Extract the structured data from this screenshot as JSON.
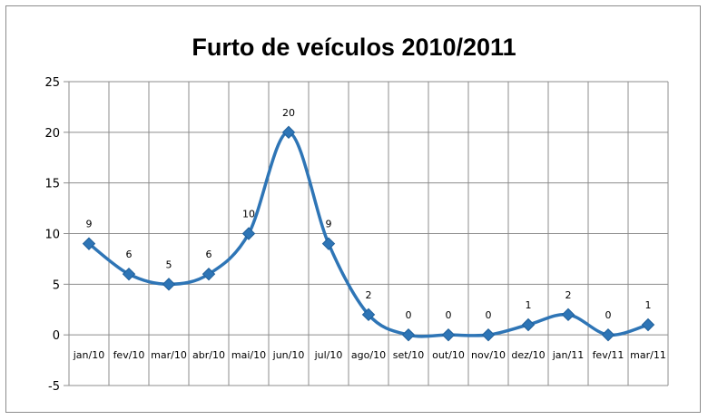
{
  "chart_data": {
    "type": "line",
    "title": "Furto de veículos 2010/2011",
    "categories": [
      "jan/10",
      "fev/10",
      "mar/10",
      "abr/10",
      "mai/10",
      "jun/10",
      "jul/10",
      "ago/10",
      "set/10",
      "out/10",
      "nov/10",
      "dez/10",
      "jan/11",
      "fev/11",
      "mar/11"
    ],
    "values": [
      9,
      6,
      5,
      6,
      10,
      20,
      9,
      2,
      0,
      0,
      0,
      1,
      2,
      0,
      1
    ],
    "ylim": [
      -5,
      25
    ],
    "yticks": [
      "-5",
      "0",
      "5",
      "10",
      "15",
      "20",
      "25"
    ],
    "grid": true,
    "smooth": true,
    "marker": "diamond",
    "data_labels": true,
    "colors": {
      "line": "#2e75b6",
      "marker": "#2e75b6",
      "grid": "#8c8c8c",
      "axis": "#8c8c8c"
    }
  }
}
